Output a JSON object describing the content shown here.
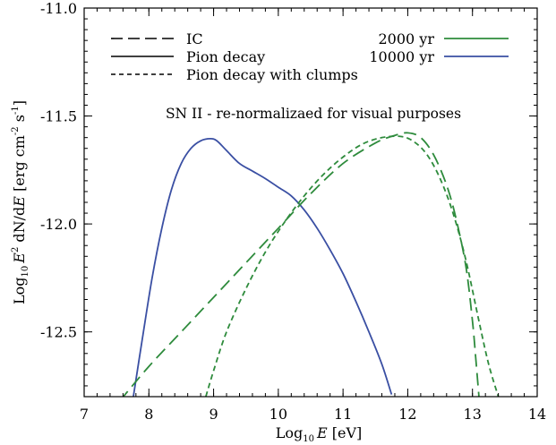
{
  "chart_data": {
    "type": "line",
    "xlabel": {
      "main": "Log",
      "sub": "10",
      "var": "E",
      "unit": " [eV]"
    },
    "ylabel": {
      "main": "Log",
      "sub": "10",
      "var": "E",
      "sup": "2",
      "mid": " dN/d",
      "var2": "E",
      "unit": " [erg cm",
      "sup2": "-2",
      "s": " s",
      "sup3": "-1",
      "close": "]"
    },
    "annotation": "SN II - re-normalizaed for visual purposes",
    "xlim": [
      7,
      14
    ],
    "ylim": [
      -12.8,
      -11.0
    ],
    "x_ticks": [
      "7",
      "8",
      "9",
      "10",
      "11",
      "12",
      "13",
      "14"
    ],
    "y_ticks": [
      "-11.0",
      "-11.5",
      "-12.0",
      "-12.5"
    ],
    "y_tick_values": [
      -11.0,
      -11.5,
      -12.0,
      -12.5
    ],
    "legend_styles": [
      {
        "label": "IC",
        "dash": "long"
      },
      {
        "label": "Pion decay",
        "dash": "solid"
      },
      {
        "label": "Pion decay with clumps",
        "dash": "short"
      }
    ],
    "legend_ages": [
      {
        "label": "2000 yr",
        "color": "#2e8b3c"
      },
      {
        "label": "10000 yr",
        "color": "#3a4fa3"
      }
    ],
    "series": [
      {
        "age": "10000 yr",
        "process": "Pion decay",
        "dash": "solid",
        "color": "#3a4fa3",
        "x": [
          7.76,
          7.9,
          8.05,
          8.2,
          8.35,
          8.5,
          8.65,
          8.8,
          8.95,
          9.05,
          9.2,
          9.4,
          9.6,
          9.8,
          10.0,
          10.2,
          10.4,
          10.6,
          10.8,
          11.0,
          11.2,
          11.4,
          11.6,
          11.75
        ],
        "y": [
          -12.8,
          -12.53,
          -12.25,
          -12.02,
          -11.84,
          -11.72,
          -11.65,
          -11.615,
          -11.605,
          -11.615,
          -11.66,
          -11.72,
          -11.755,
          -11.79,
          -11.83,
          -11.87,
          -11.935,
          -12.02,
          -12.12,
          -12.23,
          -12.36,
          -12.5,
          -12.65,
          -12.79
        ]
      },
      {
        "age": "2000 yr",
        "process": "IC",
        "dash": "long",
        "color": "#2e8b3c",
        "x": [
          7.55,
          8.0,
          8.5,
          9.0,
          9.5,
          10.0,
          10.5,
          11.0,
          11.5,
          11.8,
          12.0,
          12.2,
          12.4,
          12.6,
          12.75,
          12.9,
          13.0,
          13.05,
          13.1
        ],
        "y": [
          -12.82,
          -12.66,
          -12.5,
          -12.34,
          -12.18,
          -12.02,
          -11.86,
          -11.72,
          -11.625,
          -11.59,
          -11.578,
          -11.6,
          -11.68,
          -11.82,
          -11.98,
          -12.2,
          -12.45,
          -12.62,
          -12.8
        ]
      },
      {
        "age": "2000 yr",
        "process": "Pion decay with clumps",
        "dash": "short",
        "color": "#2e8b3c",
        "x": [
          8.88,
          9.0,
          9.2,
          9.5,
          9.8,
          10.1,
          10.4,
          10.7,
          11.0,
          11.3,
          11.6,
          11.9,
          12.1,
          12.3,
          12.5,
          12.7,
          12.9,
          13.1,
          13.25,
          13.4
        ],
        "y": [
          -12.8,
          -12.68,
          -12.5,
          -12.3,
          -12.13,
          -11.99,
          -11.87,
          -11.77,
          -11.69,
          -11.63,
          -11.6,
          -11.595,
          -11.62,
          -11.68,
          -11.79,
          -11.95,
          -12.17,
          -12.45,
          -12.65,
          -12.8
        ]
      }
    ]
  }
}
